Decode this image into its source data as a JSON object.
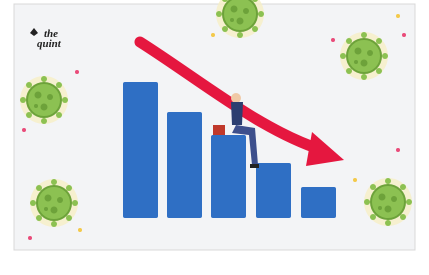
{
  "logo": {
    "line1": "the",
    "line2": "quint"
  }
}
